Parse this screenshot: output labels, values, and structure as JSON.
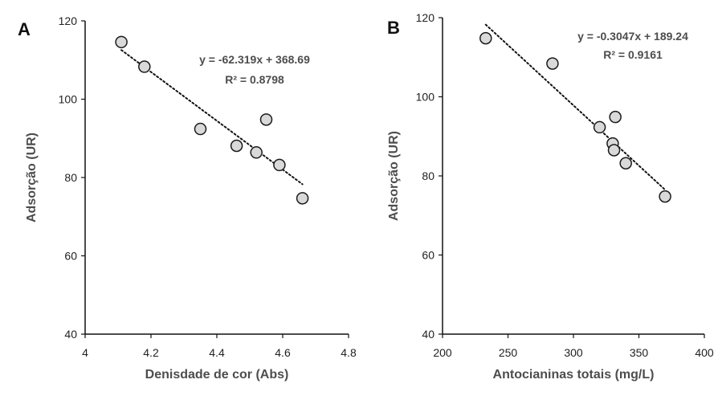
{
  "chart_data": [
    {
      "type": "scatter",
      "panel_label": "A",
      "xlabel": "Denisdade de cor (Abs)",
      "ylabel": "Adsorção (UR)",
      "xlim": [
        4,
        4.8
      ],
      "ylim": [
        40,
        120
      ],
      "x_ticks": [
        "4",
        "4.2",
        "4.4",
        "4.6",
        "4.8"
      ],
      "y_ticks": [
        "40",
        "60",
        "80",
        "100",
        "120"
      ],
      "grid": false,
      "marker_fill": "#d9d9d9",
      "marker_stroke": "#1a1a1a",
      "points": [
        {
          "x": 4.11,
          "y": 114.6
        },
        {
          "x": 4.18,
          "y": 108.3
        },
        {
          "x": 4.35,
          "y": 92.4
        },
        {
          "x": 4.46,
          "y": 88.1
        },
        {
          "x": 4.52,
          "y": 86.4
        },
        {
          "x": 4.55,
          "y": 94.8
        },
        {
          "x": 4.59,
          "y": 83.2
        },
        {
          "x": 4.66,
          "y": 74.7
        }
      ],
      "trendline": {
        "slope": -62.319,
        "intercept": 368.69,
        "x_range": [
          4.11,
          4.66
        ],
        "style": "dotted"
      },
      "equation": "y = -62.319x + 368.69",
      "r_squared": "R² = 0.8798"
    },
    {
      "type": "scatter",
      "panel_label": "B",
      "xlabel": "Antocianinas totais (mg/L)",
      "ylabel": "Adsorção (UR)",
      "xlim": [
        200,
        400
      ],
      "ylim": [
        40,
        120
      ],
      "x_ticks": [
        "200",
        "250",
        "300",
        "350",
        "400"
      ],
      "y_ticks": [
        "40",
        "60",
        "80",
        "100",
        "120"
      ],
      "grid": false,
      "marker_fill": "#d9d9d9",
      "marker_stroke": "#1a1a1a",
      "points": [
        {
          "x": 233,
          "y": 114.8
        },
        {
          "x": 284,
          "y": 108.4
        },
        {
          "x": 320,
          "y": 92.3
        },
        {
          "x": 330,
          "y": 88.2
        },
        {
          "x": 331,
          "y": 86.5
        },
        {
          "x": 332,
          "y": 94.9
        },
        {
          "x": 340,
          "y": 83.2
        },
        {
          "x": 370,
          "y": 74.8
        }
      ],
      "trendline": {
        "slope": -0.3047,
        "intercept": 189.24,
        "x_range": [
          233,
          370
        ],
        "style": "dotted"
      },
      "equation": "y = -0.3047x + 189.24",
      "r_squared": "R² = 0.9161"
    }
  ]
}
